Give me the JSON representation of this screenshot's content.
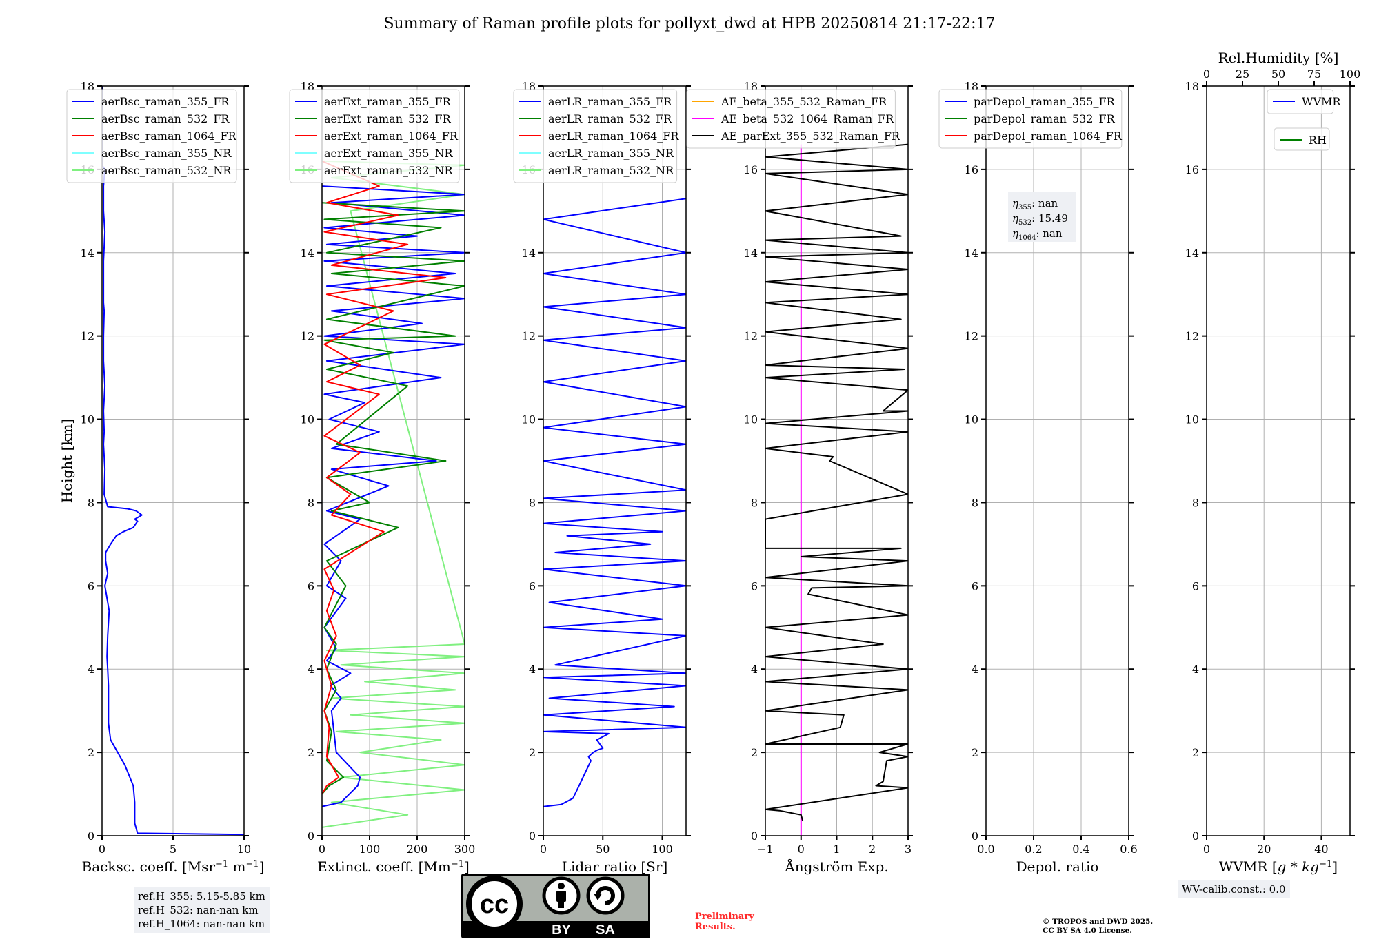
{
  "figure": {
    "title": "Summary of Raman profile plots for pollyxt_dwd at HPB 20250814 21:17-22:17",
    "ylabel": "Height [km]",
    "ref_heights": [
      "ref.H_355: 5.15-5.85 km",
      "ref.H_532: nan-nan km",
      "ref.H_1064: nan-nan km"
    ],
    "wv_calib": "WV-calib.const.: 0.0",
    "preliminary": [
      "Preliminary",
      "Results."
    ],
    "copyright": [
      "© TROPOS and DWD 2025.",
      "CC BY SA 4.0 License."
    ],
    "license_badge": {
      "cc": "cc",
      "by": "BY",
      "sa": "SA"
    },
    "colors": {
      "blue": "#0000ff",
      "green": "#008000",
      "red": "#ff0000",
      "cyan": "#7fffff",
      "lightgreen": "#80f080",
      "orange": "#ffa500",
      "magenta": "#ff00ff",
      "black": "#000000",
      "grid": "#b0b0b0",
      "infobox": "#eef0f4"
    }
  },
  "chart_data": [
    {
      "type": "line",
      "panel": "backscatter",
      "xlabel": "Backsc. coeff. [Msr^-1 m^-1]",
      "xlim": [
        0,
        10
      ],
      "xticks": [
        0,
        5,
        10
      ],
      "ylim": [
        0,
        18
      ],
      "yticks": [
        0,
        2,
        4,
        6,
        8,
        10,
        12,
        14,
        16,
        18
      ],
      "legend": [
        "aerBsc_raman_355_FR",
        "aerBsc_raman_532_FR",
        "aerBsc_raman_1064_FR",
        "aerBsc_raman_355_NR",
        "aerBsc_raman_532_NR"
      ],
      "legend_colors": [
        "#0000ff",
        "#008000",
        "#ff0000",
        "#7fffff",
        "#80f080"
      ],
      "series": [
        {
          "name": "aerBsc_raman_355_FR",
          "color": "#0000ff",
          "x": [
            10,
            2.5,
            2.3,
            2.3,
            2.2,
            1.6,
            1.1,
            0.6,
            0.45,
            0.45,
            0.45,
            0.4,
            0.35,
            0.4,
            0.5,
            0.3,
            0.2,
            0.4,
            0.25,
            0.25,
            0.6,
            1.0,
            1.5,
            2.2,
            2.5,
            2.3,
            2.8,
            2.4,
            1.8,
            0.4,
            0.15,
            0.2,
            0.1,
            0.15,
            0.1,
            0.2,
            0.1,
            0.1,
            0.15,
            0.1,
            0.1,
            0.1,
            0.2,
            0.1,
            0.1,
            0.1,
            0.2,
            0.0,
            0.0
          ],
          "y": [
            0.03,
            0.06,
            0.3,
            0.8,
            1.2,
            1.7,
            2.0,
            2.3,
            2.7,
            3.2,
            3.6,
            4.0,
            4.3,
            4.8,
            5.4,
            5.8,
            6.0,
            6.3,
            6.6,
            6.8,
            7.0,
            7.2,
            7.3,
            7.4,
            7.55,
            7.6,
            7.7,
            7.8,
            7.85,
            7.9,
            8.2,
            8.8,
            9.4,
            9.7,
            10.2,
            10.8,
            11.4,
            12.0,
            12.6,
            12.8,
            13.2,
            13.8,
            14.5,
            15.0,
            15.3,
            15.6,
            16.0,
            16.1,
            18.0
          ]
        }
      ]
    },
    {
      "type": "line",
      "panel": "extinction",
      "xlabel": "Extinct. coeff. [Mm^-1]",
      "xlim": [
        0,
        300
      ],
      "xticks": [
        0,
        100,
        200,
        300
      ],
      "ylim": [
        0,
        18
      ],
      "yticks": [
        0,
        2,
        4,
        6,
        8,
        10,
        12,
        14,
        16,
        18
      ],
      "legend": [
        "aerExt_raman_355_FR",
        "aerExt_raman_532_FR",
        "aerExt_raman_1064_FR",
        "aerExt_raman_355_NR",
        "aerExt_raman_532_NR"
      ],
      "legend_colors": [
        "#0000ff",
        "#008000",
        "#ff0000",
        "#7fffff",
        "#80f080"
      ],
      "series": [
        {
          "name": "aerExt_raman_532_NR",
          "color": "#80f080",
          "x": [
            0,
            180,
            20,
            300,
            40,
            300,
            80,
            250,
            30,
            300,
            60,
            300,
            20,
            280,
            90,
            300,
            40,
            300,
            10,
            300,
            60,
            300,
            20,
            300,
            0
          ],
          "y": [
            0.2,
            0.5,
            0.8,
            1.1,
            1.4,
            1.7,
            2.0,
            2.3,
            2.5,
            2.7,
            2.9,
            3.1,
            3.3,
            3.5,
            3.7,
            3.9,
            4.1,
            4.3,
            4.45,
            4.6,
            15.0,
            15.4,
            15.8,
            16.1,
            16.2
          ]
        },
        {
          "name": "aerExt_raman_355_FR",
          "color": "#0000ff",
          "x": [
            0,
            40,
            75,
            80,
            55,
            30,
            25,
            20,
            40,
            18,
            60,
            10,
            30,
            5,
            50,
            10,
            40,
            5,
            80,
            10,
            140,
            20,
            240,
            20,
            120,
            15,
            90,
            5,
            250,
            10,
            300,
            5,
            210,
            20,
            300,
            10,
            280,
            5,
            300,
            10,
            200,
            5,
            300,
            20,
            300,
            0
          ],
          "y": [
            0.7,
            0.8,
            1.2,
            1.4,
            1.7,
            2.0,
            2.5,
            3.0,
            3.3,
            3.6,
            3.9,
            4.2,
            4.5,
            5.0,
            5.7,
            6.0,
            6.6,
            7.0,
            7.6,
            7.8,
            8.4,
            8.8,
            9.0,
            9.3,
            9.7,
            10.0,
            10.4,
            10.6,
            11.0,
            11.4,
            11.8,
            12.0,
            12.3,
            12.6,
            12.9,
            13.2,
            13.5,
            13.8,
            14.0,
            14.2,
            14.4,
            14.6,
            14.9,
            15.2,
            15.4,
            15.6
          ]
        },
        {
          "name": "aerExt_raman_532_FR",
          "color": "#008000",
          "x": [
            0,
            15,
            45,
            10,
            20,
            5,
            30,
            10,
            30,
            5,
            50,
            10,
            160,
            20,
            100,
            10,
            260,
            30,
            180,
            10,
            150,
            5,
            280,
            10,
            300,
            20,
            300,
            10,
            250,
            5,
            300,
            0
          ],
          "y": [
            1.0,
            1.2,
            1.4,
            1.8,
            2.5,
            3.0,
            3.5,
            4.0,
            4.6,
            5.0,
            6.0,
            6.6,
            7.4,
            7.8,
            8.0,
            8.6,
            9.0,
            9.4,
            10.8,
            11.2,
            11.6,
            11.9,
            12.0,
            12.4,
            13.2,
            13.5,
            13.8,
            14.0,
            14.6,
            14.8,
            15.0,
            15.2
          ]
        },
        {
          "name": "aerExt_raman_1064_FR",
          "color": "#ff0000",
          "x": [
            0,
            10,
            35,
            10,
            15,
            5,
            20,
            5,
            30,
            10,
            25,
            5,
            130,
            20,
            60,
            10,
            80,
            5,
            120,
            10,
            80,
            5,
            150,
            10,
            260,
            20,
            180,
            5,
            160,
            10,
            120,
            0
          ],
          "y": [
            1.0,
            1.2,
            1.4,
            1.9,
            2.6,
            3.0,
            3.6,
            4.2,
            4.8,
            5.4,
            5.9,
            6.4,
            7.3,
            7.7,
            8.2,
            8.6,
            9.2,
            9.6,
            10.6,
            10.9,
            11.3,
            11.8,
            12.6,
            13.0,
            13.4,
            13.7,
            14.2,
            14.5,
            14.9,
            15.2,
            15.6,
            16.2
          ]
        }
      ]
    },
    {
      "type": "line",
      "panel": "lidar_ratio",
      "xlabel": "Lidar ratio [Sr]",
      "xlim": [
        0,
        120
      ],
      "xticks": [
        0,
        50,
        100
      ],
      "ylim": [
        0,
        18
      ],
      "yticks": [
        0,
        2,
        4,
        6,
        8,
        10,
        12,
        14,
        16,
        18
      ],
      "legend": [
        "aerLR_raman_355_FR",
        "aerLR_raman_532_FR",
        "aerLR_raman_1064_FR",
        "aerLR_raman_355_NR",
        "aerLR_raman_532_NR"
      ],
      "legend_colors": [
        "#0000ff",
        "#008000",
        "#ff0000",
        "#7fffff",
        "#80f080"
      ],
      "series": [
        {
          "name": "aerLR_raman_355_FR",
          "color": "#0000ff",
          "x": [
            0,
            15,
            25,
            30,
            35,
            40,
            38,
            42,
            45,
            50,
            45,
            55,
            0,
            120,
            0,
            110,
            5,
            120,
            0,
            120,
            10,
            120,
            0,
            100,
            5,
            120,
            0,
            120,
            10,
            90,
            20,
            100,
            0,
            120,
            0,
            120,
            0,
            120,
            0,
            120,
            0,
            120,
            0,
            120,
            0,
            120,
            0,
            120,
            0,
            120
          ],
          "y": [
            0.7,
            0.75,
            0.9,
            1.2,
            1.5,
            1.8,
            1.9,
            2.0,
            2.05,
            2.1,
            2.3,
            2.45,
            2.5,
            2.6,
            2.9,
            3.1,
            3.3,
            3.6,
            3.8,
            3.9,
            4.1,
            4.8,
            5.0,
            5.2,
            5.6,
            6.0,
            6.4,
            6.6,
            6.8,
            7.0,
            7.2,
            7.3,
            7.5,
            7.8,
            8.1,
            8.3,
            9.0,
            9.4,
            9.8,
            10.3,
            10.9,
            11.4,
            11.9,
            12.2,
            12.7,
            13.0,
            13.5,
            14.0,
            14.8,
            15.3
          ]
        }
      ]
    },
    {
      "type": "line",
      "panel": "angstrom",
      "xlabel": "Ångström Exp.",
      "xlim": [
        -1,
        3
      ],
      "xticks": [
        -1,
        0,
        1,
        2,
        3
      ],
      "ylim": [
        0,
        18
      ],
      "yticks": [
        0,
        2,
        4,
        6,
        8,
        10,
        12,
        14,
        16,
        18
      ],
      "legend": [
        "AE_beta_355_532_Raman_FR",
        "AE_beta_532_1064_Raman_FR",
        "AE_parExt_355_532_Raman_FR"
      ],
      "legend_colors": [
        "#ffa500",
        "#ff00ff",
        "#000000"
      ],
      "series": [
        {
          "name": "AE_beta_532_1064_Raman_FR",
          "color": "#ff00ff",
          "x": [
            0,
            0
          ],
          "y": [
            0.0,
            16.6
          ]
        },
        {
          "name": "AE_parExt_355_532_Raman_FR",
          "color": "#000000",
          "x": [
            0.05,
            0.0,
            -0.6,
            -1,
            3,
            2.1,
            2.3,
            2.4,
            3,
            2.2,
            3,
            -1,
            1.1,
            1.2,
            -1,
            3,
            -1,
            3,
            -1,
            2.3,
            -1,
            3,
            0.2,
            0.3,
            3,
            -1,
            3,
            0.0,
            2.8,
            -1,
            -1,
            3,
            0.8,
            0.9,
            -1,
            3,
            -1,
            3,
            2.3,
            3,
            -1,
            2.9,
            -1,
            3,
            -1,
            2.8,
            -1,
            3,
            -1,
            3,
            -1,
            3,
            -1,
            2.8,
            -1,
            3,
            -1,
            3,
            -1,
            3
          ],
          "y": [
            0.35,
            0.5,
            0.6,
            0.63,
            1.15,
            1.2,
            1.3,
            1.8,
            1.9,
            2.0,
            2.2,
            2.2,
            2.6,
            2.9,
            3.0,
            3.5,
            3.7,
            4.0,
            4.3,
            4.6,
            5.0,
            5.3,
            5.8,
            5.95,
            6.0,
            6.2,
            6.6,
            6.7,
            6.9,
            6.9,
            7.6,
            8.2,
            9.0,
            9.1,
            9.3,
            9.7,
            9.9,
            10.2,
            10.2,
            10.7,
            11.0,
            11.2,
            11.3,
            11.7,
            12.1,
            12.4,
            12.8,
            13.0,
            13.3,
            13.6,
            13.9,
            14.0,
            14.3,
            14.4,
            15.0,
            15.4,
            15.9,
            16.0,
            16.3,
            16.6
          ]
        }
      ]
    },
    {
      "type": "line",
      "panel": "depolarization",
      "xlabel": "Depol. ratio",
      "xlim": [
        0,
        0.6
      ],
      "xticks": [
        0.0,
        0.2,
        0.4,
        0.6
      ],
      "ylim": [
        0,
        18
      ],
      "yticks": [
        0,
        2,
        4,
        6,
        8,
        10,
        12,
        14,
        16,
        18
      ],
      "legend": [
        "parDepol_raman_355_FR",
        "parDepol_raman_532_FR",
        "parDepol_raman_1064_FR"
      ],
      "legend_colors": [
        "#0000ff",
        "#008000",
        "#ff0000"
      ],
      "annotation": [
        {
          "sym": "η",
          "sub": "355",
          "val": ": nan"
        },
        {
          "sym": "η",
          "sub": "532",
          "val": ": 15.49"
        },
        {
          "sym": "η",
          "sub": "1064",
          "val": ": nan"
        }
      ],
      "series": []
    },
    {
      "type": "line",
      "panel": "water_vapor",
      "xlabel": "WVMR [g*kg^-1]",
      "xlim": [
        0,
        50
      ],
      "xticks": [
        0,
        20,
        40
      ],
      "top_xlabel": "Rel.Humidity [%]",
      "top_xlim": [
        0,
        100
      ],
      "top_xticks": [
        0,
        25,
        50,
        75,
        100
      ],
      "ylim": [
        0,
        18
      ],
      "yticks": [
        0,
        2,
        4,
        6,
        8,
        10,
        12,
        14,
        16,
        18
      ],
      "legend": [
        "WVMR"
      ],
      "legend_colors": [
        "#0000ff"
      ],
      "legend2": [
        "RH"
      ],
      "legend2_colors": [
        "#008000"
      ],
      "series": []
    }
  ]
}
